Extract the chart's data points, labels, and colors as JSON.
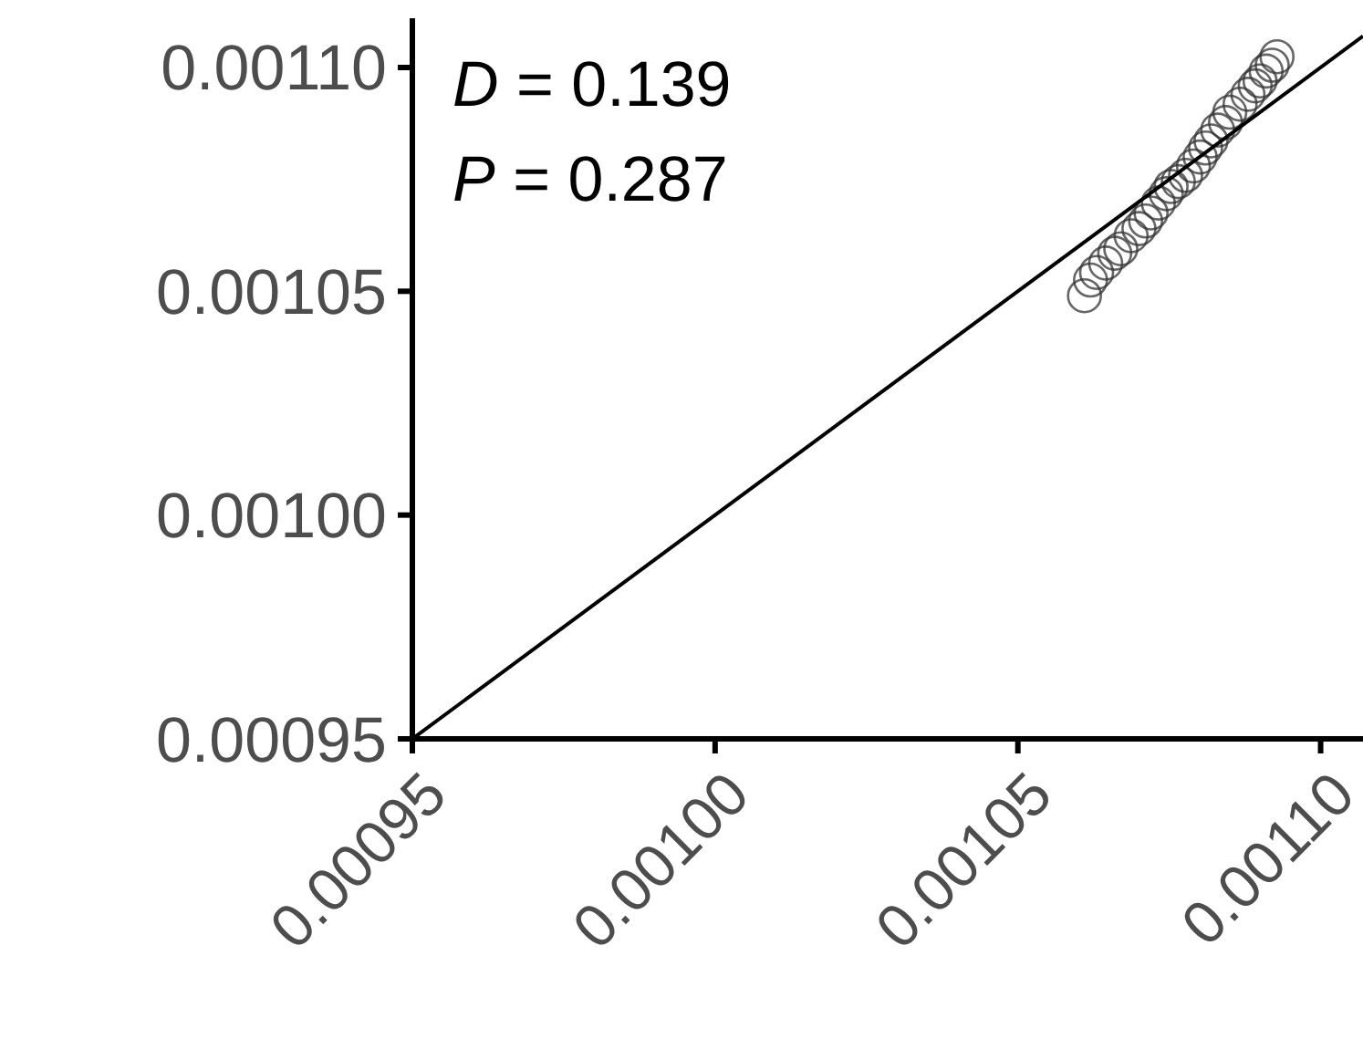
{
  "chart_data": {
    "type": "scatter",
    "xlim": [
      0.00095,
      0.001107
    ],
    "ylim": [
      0.00095,
      0.001111
    ],
    "xticks": [
      {
        "value": 0.00095,
        "label": "0.00095"
      },
      {
        "value": 0.001,
        "label": "0.00100"
      },
      {
        "value": 0.00105,
        "label": "0.00105"
      },
      {
        "value": 0.0011,
        "label": "0.00110"
      }
    ],
    "yticks": [
      {
        "value": 0.00095,
        "label": "0.00095"
      },
      {
        "value": 0.001,
        "label": "0.00100"
      },
      {
        "value": 0.00105,
        "label": "0.00105"
      },
      {
        "value": 0.0011,
        "label": "0.00110"
      }
    ],
    "grid": false,
    "annotations": [
      "D = 0.139",
      "P = 0.287"
    ],
    "series": [
      {
        "marker": "circle",
        "color": "#333333",
        "x": [
          0.001061,
          0.001062,
          0.001063,
          0.0010645,
          0.001066,
          0.001067,
          0.0010687,
          0.00107,
          0.0010711,
          0.001072,
          0.0010732,
          0.0010745,
          0.0010753,
          0.0010765,
          0.0010777,
          0.001079,
          0.0010801,
          0.001081,
          0.0010819,
          0.001083,
          0.0010843,
          0.001085,
          0.0010867,
          0.001088,
          0.0010892,
          0.00109,
          0.001091,
          0.001092,
          0.0010928
        ],
        "values": [
          0.001049,
          0.0010525,
          0.0010542,
          0.0010563,
          0.0010585,
          0.0010595,
          0.0010624,
          0.001064,
          0.0010657,
          0.0010675,
          0.0010697,
          0.0010718,
          0.0010734,
          0.0010745,
          0.0010759,
          0.001078,
          0.00108,
          0.001082,
          0.0010836,
          0.001086,
          0.0010877,
          0.00109,
          0.0010918,
          0.001094,
          0.0010959,
          0.001097,
          0.0010992,
          0.0011005,
          0.0011024
        ]
      },
      {
        "type": "line",
        "color": "#000000",
        "x": [
          0.00095,
          0.001107
        ],
        "values": [
          0.00095,
          0.001107
        ]
      }
    ]
  }
}
